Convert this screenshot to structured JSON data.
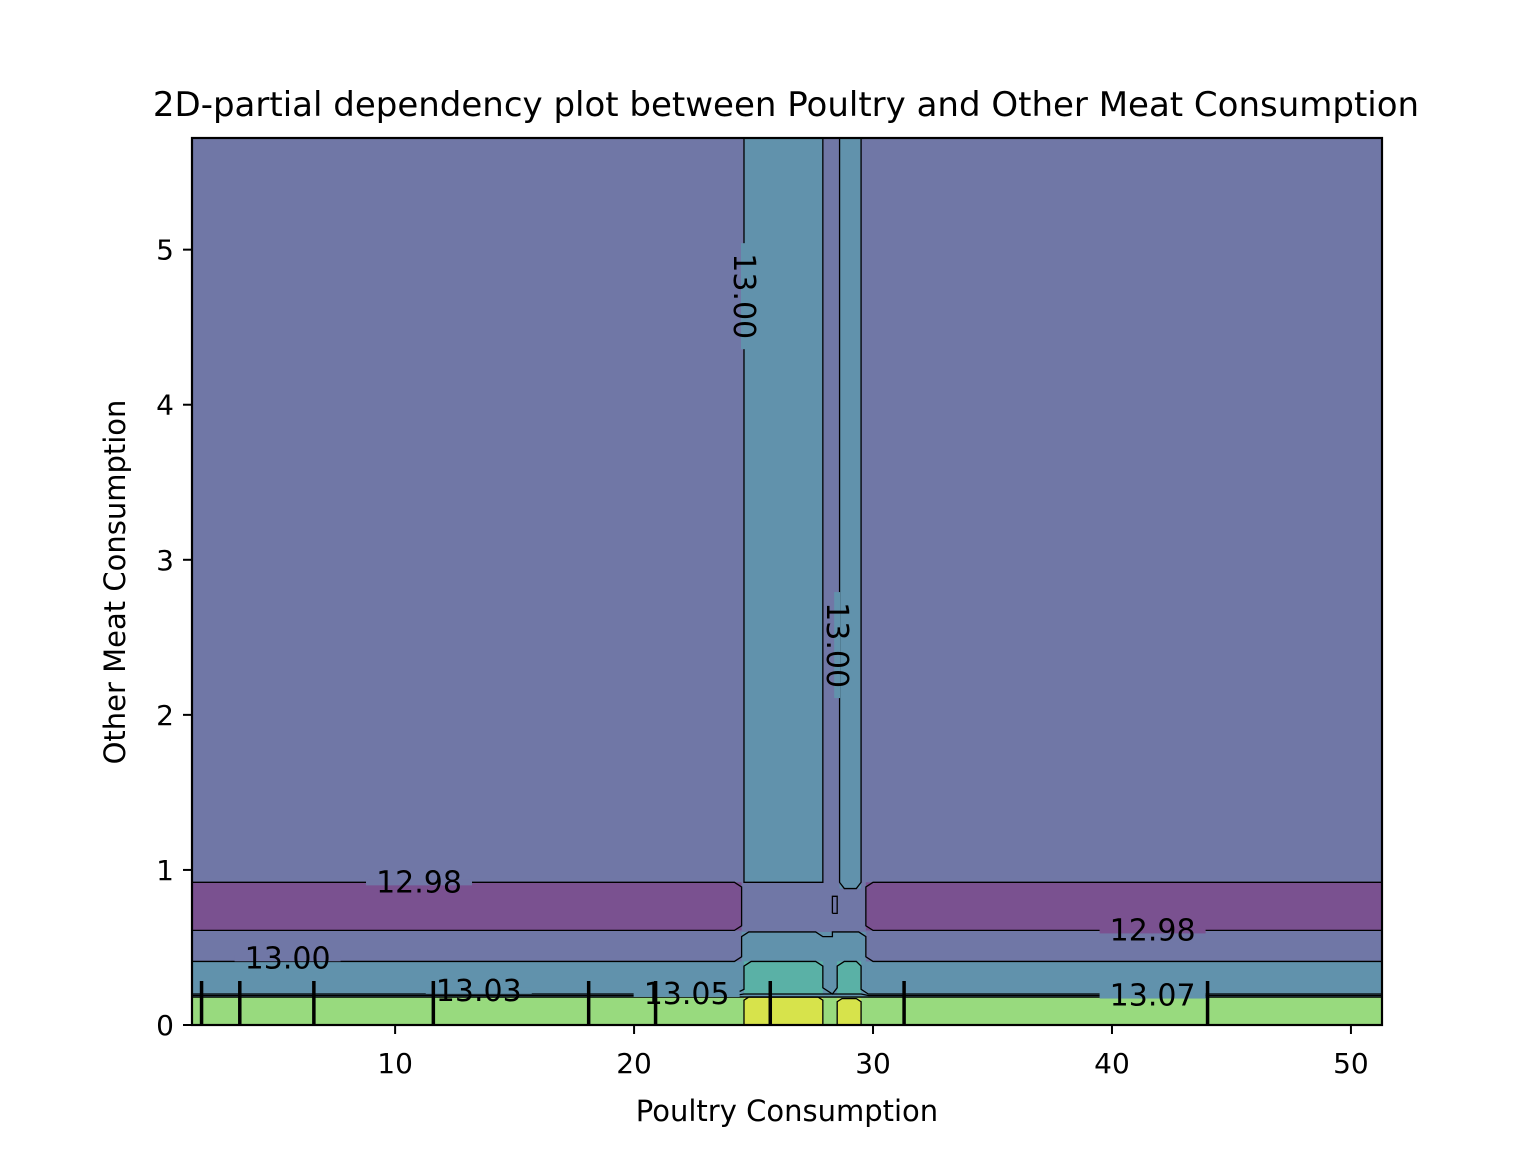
{
  "chart_data": {
    "type": "contour",
    "title": "2D-partial dependency plot between Poultry and Other Meat Consumption",
    "xlabel": "Poultry Consumption",
    "ylabel": "Other Meat Consumption",
    "xlim": [
      1.5,
      51.3
    ],
    "ylim": [
      0,
      5.72
    ],
    "xticks": [
      10,
      20,
      30,
      40,
      50
    ],
    "yticks": [
      0,
      1,
      2,
      3,
      4,
      5
    ],
    "grid": false,
    "colors": {
      "level_12_98": "#7a5190",
      "level_12_99": "#7077a6",
      "level_13_01": "#6192ac",
      "level_13_04": "#5ab1a6",
      "level_13_06": "#98da7e",
      "level_13_08": "#d7e34b",
      "contour_line": "#000000"
    },
    "regions": [
      {
        "level": "level_12_99",
        "x": [
          1.5,
          51.3
        ],
        "y": [
          0,
          5.72
        ]
      },
      {
        "level": "level_12_98",
        "x": [
          1.5,
          24.5
        ],
        "y": [
          0.61,
          0.92
        ]
      },
      {
        "level": "level_12_98",
        "x": [
          29.7,
          51.3
        ],
        "y": [
          0.61,
          0.92
        ]
      },
      {
        "level": "level_13_01",
        "x": [
          1.5,
          24.5
        ],
        "y": [
          0.18,
          0.41
        ]
      },
      {
        "level": "level_13_01",
        "x": [
          29.7,
          51.3
        ],
        "y": [
          0.18,
          0.41
        ]
      },
      {
        "level": "level_13_01",
        "x": [
          24.5,
          29.7
        ],
        "y": [
          0.18,
          0.6
        ]
      },
      {
        "level": "level_13_01",
        "x": [
          24.6,
          27.9
        ],
        "y": [
          0.92,
          5.72
        ]
      },
      {
        "level": "level_13_01",
        "x": [
          28.6,
          29.5
        ],
        "y": [
          0.88,
          5.72
        ]
      },
      {
        "level": "level_13_04",
        "x": [
          24.6,
          27.9
        ],
        "y": [
          0.2,
          0.41
        ]
      },
      {
        "level": "level_13_04",
        "x": [
          28.5,
          29.5
        ],
        "y": [
          0.2,
          0.41
        ]
      },
      {
        "level": "level_13_06",
        "x": [
          1.5,
          51.3
        ],
        "y": [
          0,
          0.18
        ]
      },
      {
        "level": "level_13_08",
        "x": [
          24.6,
          27.9
        ],
        "y": [
          0,
          0.18
        ]
      },
      {
        "level": "level_13_08",
        "x": [
          28.5,
          29.5
        ],
        "y": [
          0,
          0.17
        ]
      }
    ],
    "contour_lines": [
      {
        "level": "12.98",
        "points": [
          [
            1.5,
            0.92
          ],
          [
            24.2,
            0.92
          ],
          [
            24.5,
            0.89
          ],
          [
            24.5,
            0.64
          ],
          [
            24.2,
            0.61
          ],
          [
            1.5,
            0.61
          ]
        ]
      },
      {
        "level": "12.98",
        "points": [
          [
            51.3,
            0.92
          ],
          [
            30.0,
            0.92
          ],
          [
            29.7,
            0.89
          ],
          [
            29.7,
            0.64
          ],
          [
            30.0,
            0.61
          ],
          [
            51.3,
            0.61
          ]
        ]
      },
      {
        "level": "12.98",
        "points": [
          [
            28.3,
            0.72
          ],
          [
            28.3,
            0.83
          ],
          [
            28.5,
            0.83
          ],
          [
            28.5,
            0.72
          ],
          [
            28.3,
            0.72
          ]
        ]
      },
      {
        "level": "13.00",
        "points": [
          [
            24.6,
            5.72
          ],
          [
            24.6,
            0.92
          ],
          [
            27.9,
            0.92
          ],
          [
            27.9,
            5.72
          ]
        ]
      },
      {
        "level": "13.00",
        "points": [
          [
            28.6,
            5.72
          ],
          [
            28.6,
            0.92
          ],
          [
            28.8,
            0.88
          ],
          [
            29.3,
            0.88
          ],
          [
            29.5,
            0.92
          ],
          [
            29.5,
            5.72
          ]
        ]
      },
      {
        "level": "13.00",
        "points": [
          [
            1.5,
            0.41
          ],
          [
            24.2,
            0.41
          ],
          [
            24.5,
            0.44
          ],
          [
            24.5,
            0.57
          ],
          [
            24.8,
            0.6
          ],
          [
            27.6,
            0.6
          ],
          [
            27.9,
            0.57
          ],
          [
            28.3,
            0.57
          ],
          [
            28.3,
            0.6
          ],
          [
            28.7,
            0.6
          ],
          [
            29.4,
            0.6
          ],
          [
            29.7,
            0.57
          ],
          [
            29.7,
            0.44
          ],
          [
            30.0,
            0.41
          ],
          [
            51.3,
            0.41
          ]
        ]
      },
      {
        "level": "13.03",
        "points": [
          [
            1.5,
            0.2
          ],
          [
            24.2,
            0.2
          ],
          [
            24.6,
            0.23
          ],
          [
            24.6,
            0.38
          ],
          [
            24.9,
            0.41
          ],
          [
            27.6,
            0.41
          ],
          [
            27.9,
            0.38
          ],
          [
            27.9,
            0.24
          ],
          [
            28.3,
            0.2
          ],
          [
            28.5,
            0.24
          ],
          [
            28.5,
            0.38
          ],
          [
            28.8,
            0.41
          ],
          [
            29.3,
            0.41
          ],
          [
            29.5,
            0.38
          ],
          [
            29.5,
            0.23
          ],
          [
            29.8,
            0.2
          ],
          [
            51.3,
            0.2
          ]
        ]
      },
      {
        "level": "13.05",
        "points": [
          [
            1.5,
            0.19
          ],
          [
            24.2,
            0.19
          ],
          [
            24.6,
            0.2
          ],
          [
            27.9,
            0.2
          ],
          [
            28.5,
            0.2
          ],
          [
            29.5,
            0.2
          ],
          [
            29.8,
            0.19
          ],
          [
            51.3,
            0.19
          ]
        ]
      },
      {
        "level": "13.07",
        "points": [
          [
            1.5,
            0.18
          ],
          [
            24.2,
            0.18
          ],
          [
            51.3,
            0.18
          ]
        ]
      },
      {
        "level": "13.07",
        "points": [
          [
            24.6,
            0
          ],
          [
            24.6,
            0.16
          ],
          [
            24.8,
            0.18
          ],
          [
            27.7,
            0.18
          ],
          [
            27.9,
            0.16
          ],
          [
            27.9,
            0
          ]
        ]
      },
      {
        "level": "13.07",
        "points": [
          [
            28.5,
            0
          ],
          [
            28.5,
            0.15
          ],
          [
            28.7,
            0.17
          ],
          [
            29.3,
            0.17
          ],
          [
            29.5,
            0.15
          ],
          [
            29.5,
            0
          ]
        ]
      }
    ],
    "contour_labels": [
      {
        "text": "12.98",
        "x": 11.0,
        "y": 0.92,
        "rotation": 0
      },
      {
        "text": "12.98",
        "x": 41.7,
        "y": 0.61,
        "rotation": 0
      },
      {
        "text": "13.00",
        "x": 5.5,
        "y": 0.43,
        "rotation": 0
      },
      {
        "text": "13.03",
        "x": 13.5,
        "y": 0.22,
        "rotation": 0
      },
      {
        "text": "13.05",
        "x": 22.2,
        "y": 0.2,
        "rotation": 0
      },
      {
        "text": "13.07",
        "x": 41.7,
        "y": 0.19,
        "rotation": 0
      },
      {
        "text": "13.00",
        "x": 24.6,
        "y": 4.7,
        "rotation": 90
      },
      {
        "text": "13.00",
        "x": 28.5,
        "y": 2.45,
        "rotation": 90
      }
    ],
    "rug_marks_x": [
      1.9,
      3.5,
      6.6,
      11.6,
      18.1,
      20.9,
      25.7,
      31.3,
      44.0
    ]
  }
}
